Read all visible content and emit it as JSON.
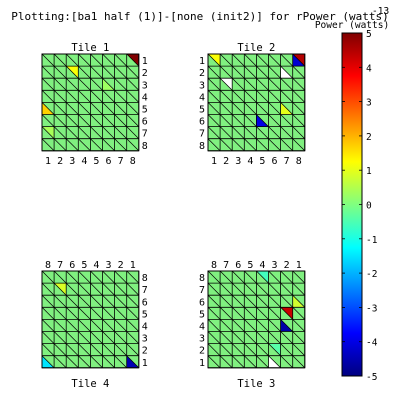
{
  "chart_data": {
    "type": "heatmap",
    "title": "Plotting:[ba1 half (1)]-[none (init2)] for rPower (watts)",
    "grid": true,
    "colorbar": {
      "label": "Power (watts)",
      "exponent_label": "-13",
      "ticks": [
        "5",
        "4",
        "3",
        "2",
        "1",
        "0",
        "-1",
        "-2",
        "-3",
        "-4",
        "-5"
      ],
      "min": -5,
      "max": 5,
      "colormap": "jet"
    },
    "colors": {
      "base": "#80f080",
      "line": "#000000"
    },
    "tiles": [
      {
        "name": "Tile 1",
        "title_position": "top",
        "x_ticks": [
          "1",
          "2",
          "3",
          "4",
          "5",
          "6",
          "7",
          "8"
        ],
        "y_ticks": [
          "1",
          "2",
          "3",
          "4",
          "5",
          "6",
          "7",
          "8"
        ],
        "y_tick_side": "right",
        "x_tick_side": "bottom",
        "highlights": [
          {
            "row": 1,
            "col": 8,
            "half": "upper",
            "value": 5
          },
          {
            "row": 2,
            "col": 3,
            "half": "upper",
            "value": 1.2
          },
          {
            "row": 5,
            "col": 1,
            "half": "lower",
            "value": 1.7
          },
          {
            "row": 7,
            "col": 1,
            "half": "upper",
            "value": 0.4
          },
          {
            "row": 3,
            "col": 6,
            "half": "lower",
            "value": 0.3
          }
        ]
      },
      {
        "name": "Tile 2",
        "title_position": "top",
        "x_ticks": [
          "1",
          "2",
          "3",
          "4",
          "5",
          "6",
          "7",
          "8"
        ],
        "y_ticks": [
          "1",
          "2",
          "3",
          "4",
          "5",
          "6",
          "7",
          "8"
        ],
        "y_tick_side": "left",
        "x_tick_side": "bottom",
        "highlights": [
          {
            "row": 1,
            "col": 1,
            "half": "upper",
            "value": 1.2
          },
          {
            "row": 1,
            "col": 8,
            "half": "upper",
            "value": 4.5
          },
          {
            "row": 1,
            "col": 8,
            "half": "lower",
            "value": -4.2
          },
          {
            "row": 2,
            "col": 7,
            "half": "lower",
            "value": null
          },
          {
            "row": 3,
            "col": 2,
            "half": "upper",
            "value": null
          },
          {
            "row": 5,
            "col": 7,
            "half": "lower",
            "value": 1.0
          },
          {
            "row": 6,
            "col": 5,
            "half": "lower",
            "value": -4.0
          }
        ]
      },
      {
        "name": "Tile 4",
        "title_position": "bottom",
        "x_ticks": [
          "8",
          "7",
          "6",
          "5",
          "4",
          "3",
          "2",
          "1"
        ],
        "y_ticks": [
          "8",
          "7",
          "6",
          "5",
          "4",
          "3",
          "2",
          "1"
        ],
        "y_tick_side": "right",
        "x_tick_side": "top",
        "highlights": [
          {
            "row": 2,
            "col": 2,
            "half": "upper",
            "value": 0.9
          },
          {
            "row": 8,
            "col": 1,
            "half": "lower",
            "value": -1.5
          },
          {
            "row": 8,
            "col": 8,
            "half": "lower",
            "value": -4.5
          }
        ]
      },
      {
        "name": "Tile 3",
        "title_position": "bottom",
        "x_ticks": [
          "8",
          "7",
          "6",
          "5",
          "4",
          "3",
          "2",
          "1"
        ],
        "y_ticks": [
          "8",
          "7",
          "6",
          "5",
          "4",
          "3",
          "2",
          "1"
        ],
        "y_tick_side": "left",
        "x_tick_side": "top",
        "highlights": [
          {
            "row": 1,
            "col": 5,
            "half": "upper",
            "value": -0.6
          },
          {
            "row": 3,
            "col": 8,
            "half": "lower",
            "value": 0.8
          },
          {
            "row": 4,
            "col": 7,
            "half": "upper",
            "value": 4.3
          },
          {
            "row": 5,
            "col": 7,
            "half": "lower",
            "value": -4.6
          },
          {
            "row": 7,
            "col": 6,
            "half": "upper",
            "value": -0.4
          },
          {
            "row": 8,
            "col": 6,
            "half": "lower",
            "value": null
          }
        ]
      }
    ]
  }
}
